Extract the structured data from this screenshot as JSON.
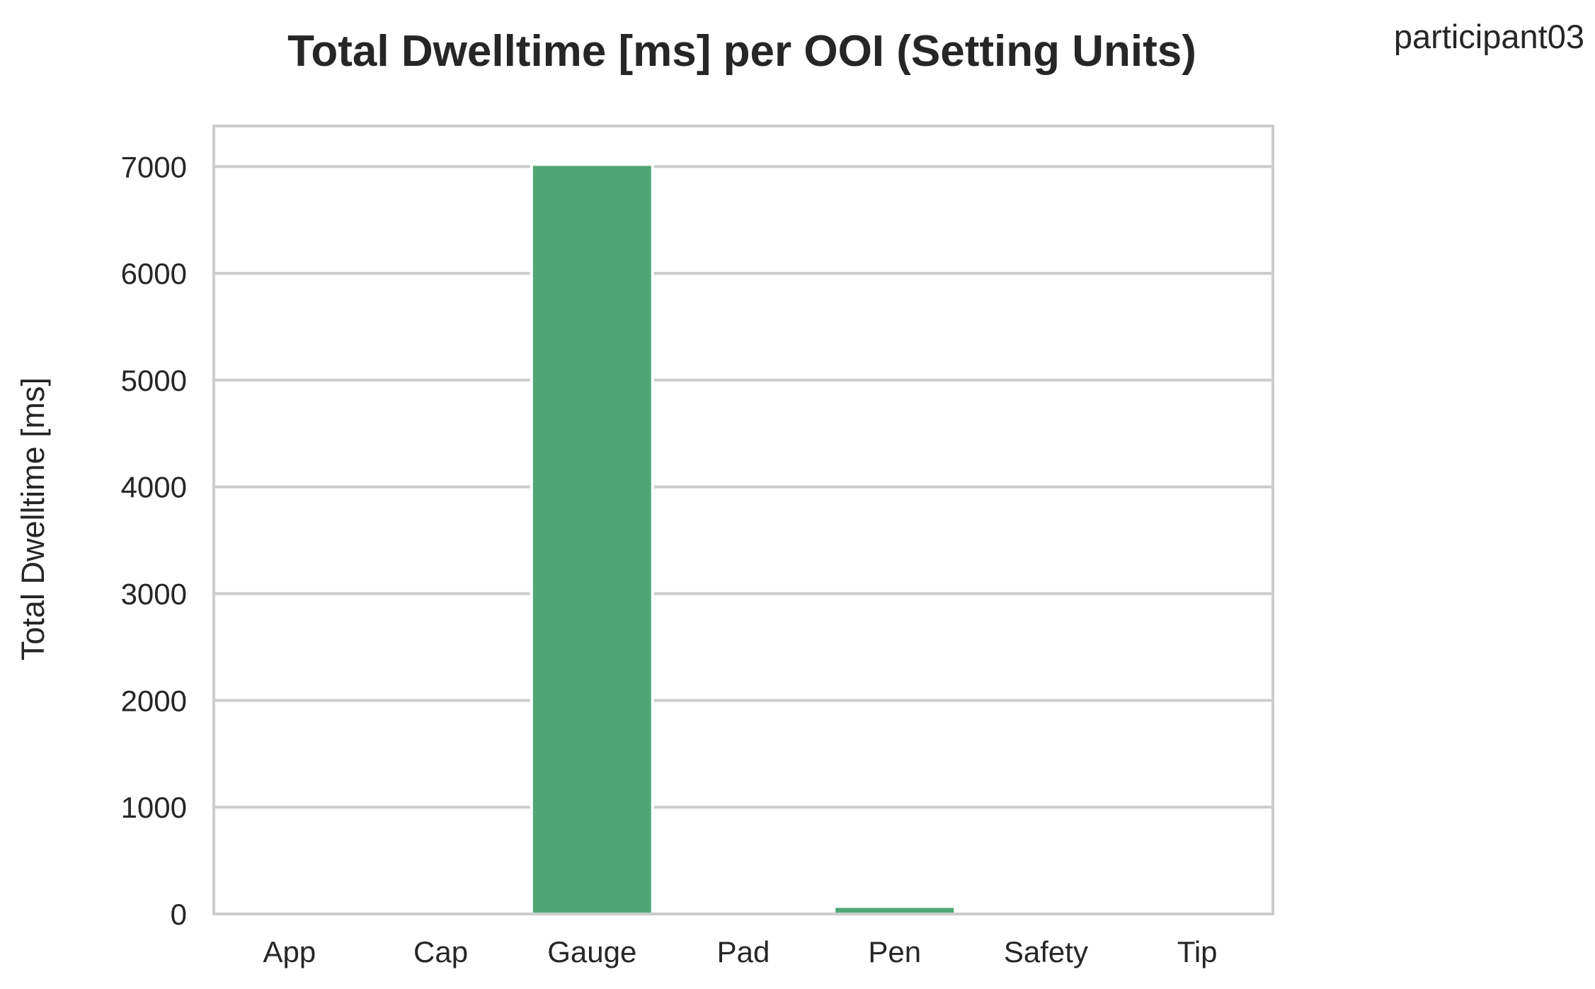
{
  "chart_data": {
    "type": "bar",
    "title": "Total Dwelltime [ms] per OOI (Setting Units)",
    "corner_label": "participant03",
    "xlabel": "",
    "ylabel": "Total Dwelltime [ms]",
    "categories": [
      "App",
      "Cap",
      "Gauge",
      "Pad",
      "Pen",
      "Safety",
      "Tip"
    ],
    "values": [
      0,
      0,
      7020,
      0,
      70,
      0,
      0
    ],
    "ylim": [
      0,
      7380
    ],
    "yticks": [
      0,
      1000,
      2000,
      3000,
      4000,
      5000,
      6000,
      7000
    ],
    "grid": true,
    "bar_color": "#4ea674",
    "grid_color": "#cccccc",
    "frame_color": "#cccccc"
  }
}
